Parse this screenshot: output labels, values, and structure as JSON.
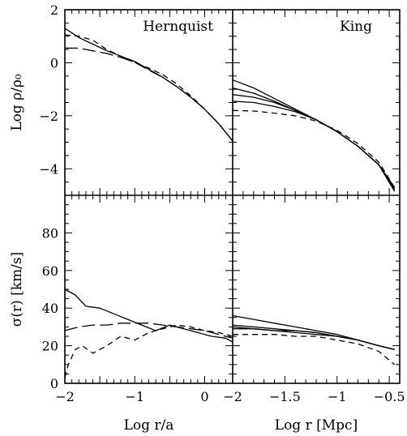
{
  "chart_data": [
    {
      "type": "line",
      "panel": "top-left",
      "label": "Hernquist",
      "xlim": [
        -2,
        0.4
      ],
      "ylim": [
        -5,
        2
      ],
      "ylabel": "Log ρ/ρ₀",
      "xlabel": "",
      "y_ticks": [
        "2",
        "0",
        "−2",
        "−4"
      ],
      "series": [
        {
          "style": "solid",
          "x": [
            -2.0,
            -1.8,
            -1.6,
            -1.4,
            -1.2,
            -1.0,
            -0.8,
            -0.6,
            -0.4,
            -0.2,
            0.0,
            0.2,
            0.4
          ],
          "y": [
            1.3,
            0.95,
            0.7,
            0.45,
            0.25,
            0.05,
            -0.25,
            -0.55,
            -0.9,
            -1.3,
            -1.75,
            -2.3,
            -2.95
          ]
        },
        {
          "style": "dashed",
          "x": [
            -2.0,
            -1.8,
            -1.6,
            -1.4,
            -1.2,
            -1.0,
            -0.8,
            -0.6,
            -0.4,
            -0.2,
            0.0,
            0.2,
            0.4
          ],
          "y": [
            1.05,
            1.0,
            0.85,
            0.5,
            0.25,
            0.0,
            -0.2,
            -0.45,
            -0.8,
            -1.25,
            -1.75,
            -2.3,
            -2.95
          ]
        },
        {
          "style": "long-dashed",
          "x": [
            -2.0,
            -1.8,
            -1.6,
            -1.4,
            -1.2,
            -1.0,
            -0.8,
            -0.6,
            -0.4,
            -0.2,
            0.0,
            0.2,
            0.4
          ],
          "y": [
            0.55,
            0.55,
            0.45,
            0.35,
            0.2,
            0.02,
            -0.28,
            -0.55,
            -0.9,
            -1.3,
            -1.75,
            -2.3,
            -2.95
          ]
        }
      ]
    },
    {
      "type": "line",
      "panel": "top-right",
      "label": "King",
      "xlim": [
        -2,
        -0.4
      ],
      "ylim": [
        -5,
        2
      ],
      "xlabel": "",
      "ylabel": "",
      "series": [
        {
          "style": "solid",
          "x": [
            -2.0,
            -1.8,
            -1.6,
            -1.4,
            -1.2,
            -1.0,
            -0.8,
            -0.6,
            -0.45
          ],
          "y": [
            -0.65,
            -0.95,
            -1.35,
            -1.75,
            -2.15,
            -2.6,
            -3.15,
            -3.85,
            -4.7
          ]
        },
        {
          "style": "solid",
          "x": [
            -2.0,
            -1.8,
            -1.6,
            -1.4,
            -1.2,
            -1.0,
            -0.8,
            -0.6,
            -0.45
          ],
          "y": [
            -0.95,
            -1.15,
            -1.45,
            -1.8,
            -2.15,
            -2.6,
            -3.15,
            -3.85,
            -4.75
          ]
        },
        {
          "style": "solid",
          "x": [
            -2.0,
            -1.8,
            -1.6,
            -1.4,
            -1.2,
            -1.0,
            -0.8,
            -0.6,
            -0.45
          ],
          "y": [
            -1.2,
            -1.3,
            -1.5,
            -1.8,
            -2.15,
            -2.6,
            -3.15,
            -3.85,
            -4.8
          ]
        },
        {
          "style": "solid",
          "x": [
            -2.0,
            -1.8,
            -1.6,
            -1.4,
            -1.2,
            -1.0,
            -0.8,
            -0.6,
            -0.45
          ],
          "y": [
            -1.45,
            -1.5,
            -1.65,
            -1.85,
            -2.15,
            -2.6,
            -3.15,
            -3.85,
            -4.85
          ]
        },
        {
          "style": "dashed",
          "x": [
            -2.0,
            -1.8,
            -1.6,
            -1.4,
            -1.2,
            -1.0,
            -0.8,
            -0.6,
            -0.45
          ],
          "y": [
            -1.8,
            -1.82,
            -1.9,
            -2.0,
            -2.2,
            -2.55,
            -3.05,
            -3.75,
            -4.7
          ]
        }
      ]
    },
    {
      "type": "line",
      "panel": "bottom-left",
      "xlim": [
        -2,
        0.4
      ],
      "ylim": [
        0,
        100
      ],
      "ylabel": "σ(r)  [km/s]",
      "xlabel": "Log r/a",
      "x_ticks": [
        "−2",
        "−1",
        "0"
      ],
      "y_ticks": [
        "0",
        "20",
        "40",
        "60",
        "80"
      ],
      "series": [
        {
          "style": "solid",
          "x": [
            -2.0,
            -1.85,
            -1.7,
            -1.5,
            -1.3,
            -1.1,
            -0.9,
            -0.7,
            -0.5,
            -0.3,
            -0.1,
            0.1,
            0.3,
            0.4
          ],
          "y": [
            50,
            47,
            41,
            40,
            37,
            34,
            31,
            28,
            31,
            29,
            27,
            25,
            24,
            22
          ]
        },
        {
          "style": "long-dashed",
          "x": [
            -2.0,
            -1.8,
            -1.6,
            -1.4,
            -1.2,
            -1.0,
            -0.8,
            -0.6,
            -0.4,
            -0.2,
            0.0,
            0.2,
            0.4
          ],
          "y": [
            28,
            30,
            31,
            31,
            32,
            32,
            32,
            31,
            30,
            29,
            28,
            26,
            24
          ]
        },
        {
          "style": "dashed",
          "x": [
            -2.0,
            -1.95,
            -1.85,
            -1.75,
            -1.6,
            -1.4,
            -1.2,
            -1.0,
            -0.8,
            -0.6,
            -0.4,
            -0.2,
            0.0,
            0.2,
            0.4
          ],
          "y": [
            3,
            10,
            18,
            20,
            16,
            20,
            25,
            23,
            27,
            29,
            31,
            30,
            28,
            27,
            25
          ]
        }
      ]
    },
    {
      "type": "line",
      "panel": "bottom-right",
      "xlim": [
        -2,
        -0.4
      ],
      "ylim": [
        0,
        100
      ],
      "xlabel": "Log r  [Mpc]",
      "ylabel": "",
      "x_ticks": [
        "−2",
        "−1.5",
        "−1",
        "−0.5"
      ],
      "series": [
        {
          "style": "solid",
          "x": [
            -2.0,
            -1.8,
            -1.6,
            -1.4,
            -1.2,
            -1.0,
            -0.8,
            -0.6,
            -0.45
          ],
          "y": [
            36,
            34,
            32,
            30,
            28,
            26,
            23,
            20,
            18
          ]
        },
        {
          "style": "solid",
          "x": [
            -2.0,
            -1.8,
            -1.6,
            -1.4,
            -1.2,
            -1.0,
            -0.8,
            -0.6,
            -0.45
          ],
          "y": [
            31,
            30,
            29,
            28,
            27,
            25,
            23,
            20,
            18
          ]
        },
        {
          "style": "solid",
          "x": [
            -2.0,
            -1.8,
            -1.6,
            -1.4,
            -1.2,
            -1.0,
            -0.8,
            -0.6,
            -0.45
          ],
          "y": [
            30,
            29,
            28,
            28,
            27,
            25,
            23,
            20,
            18
          ]
        },
        {
          "style": "solid",
          "x": [
            -2.0,
            -1.8,
            -1.6,
            -1.4,
            -1.2,
            -1.0,
            -0.8,
            -0.6,
            -0.45
          ],
          "y": [
            29,
            29,
            28,
            27,
            26,
            25,
            23,
            20,
            18
          ]
        },
        {
          "style": "dashed",
          "x": [
            -2.0,
            -1.8,
            -1.6,
            -1.4,
            -1.2,
            -1.0,
            -0.8,
            -0.6,
            -0.45
          ],
          "y": [
            26,
            26,
            26,
            25,
            25,
            23,
            21,
            17,
            10
          ]
        }
      ]
    }
  ]
}
